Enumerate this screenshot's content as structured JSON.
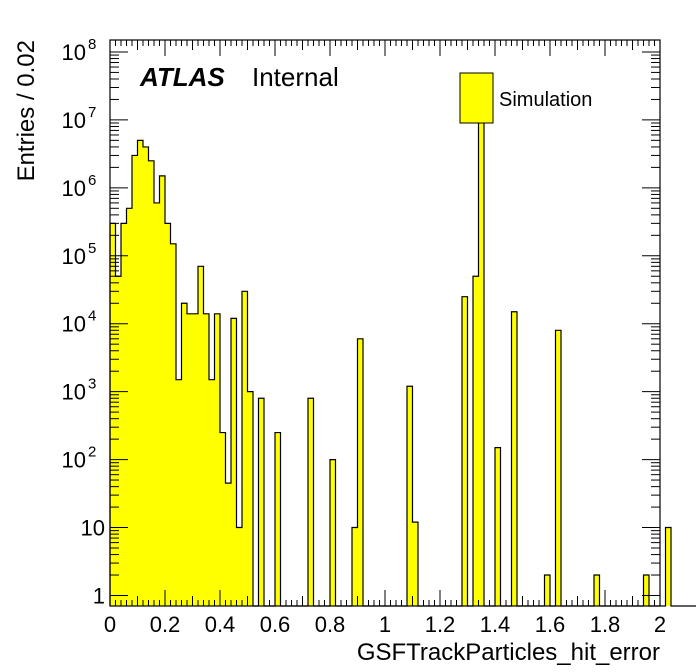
{
  "chart_data": {
    "type": "bar",
    "xlabel": "GSFTrackParticles_hit_error",
    "ylabel": "Entries / 0.02",
    "bin_width": 0.02,
    "xlim": [
      0,
      2
    ],
    "ylim": [
      0.7,
      150000000
    ],
    "yscale": "log",
    "grid": false,
    "legend": {
      "placement": "top-right",
      "entries": [
        {
          "name": "Simulation",
          "color": "#ffff00"
        }
      ]
    },
    "label": {
      "experiment": "ATLAS",
      "status": "Internal"
    },
    "fill_color": "#ffff00",
    "edge_color": "#000000",
    "x_tick_labels": [
      "0",
      "0.2",
      "0.4",
      "0.6",
      "0.8",
      "1",
      "1.2",
      "1.4",
      "1.6",
      "1.8",
      "2"
    ],
    "y_tick_labels": [
      {
        "value": 1,
        "base": "1",
        "exp": ""
      },
      {
        "value": 10,
        "base": "10",
        "exp": ""
      },
      {
        "value": 100,
        "base": "10",
        "exp": "2"
      },
      {
        "value": 1000,
        "base": "10",
        "exp": "3"
      },
      {
        "value": 10000,
        "base": "10",
        "exp": "4"
      },
      {
        "value": 100000,
        "base": "10",
        "exp": "5"
      },
      {
        "value": 1000000,
        "base": "10",
        "exp": "6"
      },
      {
        "value": 10000000,
        "base": "10",
        "exp": "7"
      },
      {
        "value": 100000000,
        "base": "10",
        "exp": "8"
      }
    ],
    "values": [
      300000,
      50000,
      300000,
      500000,
      3000000,
      5000000,
      4000000,
      2500000,
      600000,
      1500000,
      300000,
      150000,
      1500,
      20000,
      14000,
      14000,
      70000,
      14000,
      1500,
      14000,
      250,
      45,
      12000,
      10,
      30000,
      1000,
      0,
      800,
      0,
      0,
      250,
      0,
      0,
      0,
      0,
      0,
      800,
      0,
      0,
      0,
      100,
      0,
      0,
      0,
      10,
      6000,
      0,
      0,
      0,
      0,
      0,
      0,
      0,
      0,
      1200,
      12,
      0,
      0,
      0,
      0,
      0,
      0,
      0,
      0,
      25000,
      0,
      50000,
      10000000,
      0,
      0,
      150,
      0,
      0,
      15000,
      0,
      0,
      0,
      0,
      0,
      2,
      0,
      8000,
      0,
      0,
      0,
      0,
      0,
      0,
      2,
      0,
      0,
      0,
      0,
      0,
      0,
      0,
      0,
      2,
      0,
      0,
      0,
      10,
      0,
      0,
      0,
      0,
      0,
      0,
      0,
      0,
      0,
      0,
      0,
      0,
      0,
      0,
      0,
      0,
      0,
      0,
      0,
      0,
      0,
      0,
      0,
      0,
      0,
      0,
      0,
      0,
      0,
      0,
      0,
      0,
      0,
      0,
      0,
      0,
      0,
      0,
      0,
      0,
      0,
      0,
      0,
      0,
      0,
      0,
      0,
      0,
      0,
      0,
      0,
      0,
      0,
      0,
      0,
      0,
      0,
      0,
      0,
      0,
      0,
      0,
      0,
      0,
      0,
      0,
      0,
      0,
      0,
      0,
      0,
      0,
      0,
      0,
      0,
      0,
      0,
      0,
      0,
      0,
      0,
      0,
      0,
      0,
      0,
      0,
      0,
      0,
      0,
      0,
      0,
      0,
      0,
      0,
      0,
      0,
      0,
      0
    ]
  }
}
